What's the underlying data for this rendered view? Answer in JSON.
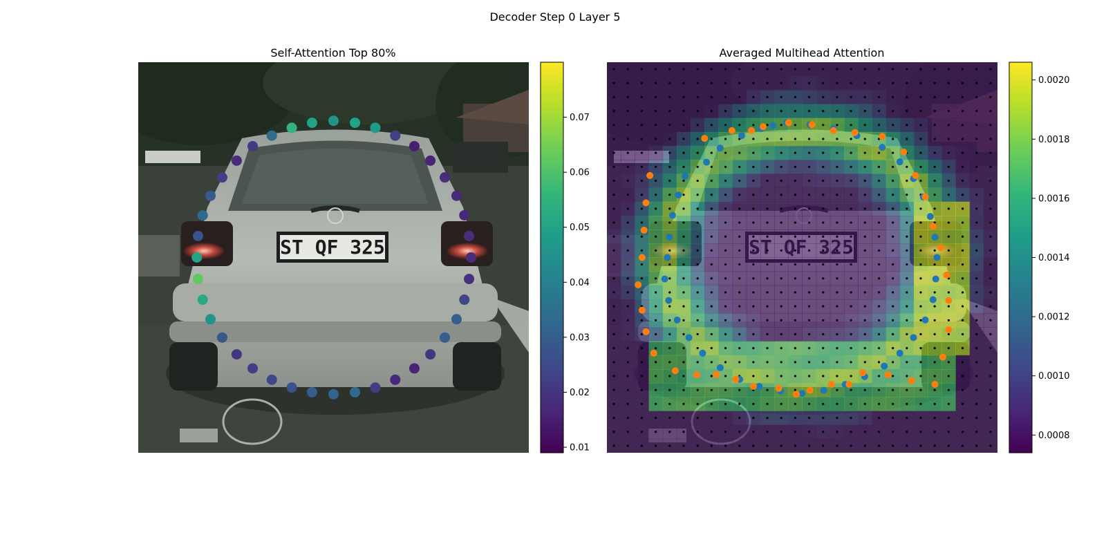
{
  "figure_title": "Decoder Step 0 Layer 5",
  "colormap": [
    "#440154",
    "#482878",
    "#3e4a89",
    "#31688e",
    "#26828e",
    "#1f9e89",
    "#35b779",
    "#6ece58",
    "#b5de2b",
    "#fde725"
  ],
  "chart_data": [
    {
      "type": "scatter",
      "title": "Self-Attention Top 80%",
      "background": "photo of rear of silver hatchback car with license plate",
      "plate_text": "ST QF 325",
      "colorbar": {
        "min": 0.009,
        "max": 0.08,
        "ticks": [
          0.01,
          0.02,
          0.03,
          0.04,
          0.05,
          0.06,
          0.07
        ]
      },
      "highlight_line": {
        "from_index": 40,
        "to_index": 34,
        "color": "#fde725"
      },
      "points": [
        {
          "x": 0.5,
          "y": 0.15,
          "v": 0.045
        },
        {
          "x": 0.555,
          "y": 0.155,
          "v": 0.05
        },
        {
          "x": 0.607,
          "y": 0.168,
          "v": 0.048
        },
        {
          "x": 0.658,
          "y": 0.188,
          "v": 0.023
        },
        {
          "x": 0.707,
          "y": 0.215,
          "v": 0.015
        },
        {
          "x": 0.748,
          "y": 0.252,
          "v": 0.016
        },
        {
          "x": 0.785,
          "y": 0.295,
          "v": 0.018
        },
        {
          "x": 0.815,
          "y": 0.342,
          "v": 0.017
        },
        {
          "x": 0.835,
          "y": 0.392,
          "v": 0.017
        },
        {
          "x": 0.847,
          "y": 0.445,
          "v": 0.018
        },
        {
          "x": 0.852,
          "y": 0.5,
          "v": 0.018
        },
        {
          "x": 0.847,
          "y": 0.555,
          "v": 0.019
        },
        {
          "x": 0.835,
          "y": 0.608,
          "v": 0.024
        },
        {
          "x": 0.815,
          "y": 0.658,
          "v": 0.03
        },
        {
          "x": 0.785,
          "y": 0.705,
          "v": 0.03
        },
        {
          "x": 0.748,
          "y": 0.748,
          "v": 0.02
        },
        {
          "x": 0.707,
          "y": 0.784,
          "v": 0.016
        },
        {
          "x": 0.658,
          "y": 0.813,
          "v": 0.017
        },
        {
          "x": 0.607,
          "y": 0.833,
          "v": 0.022
        },
        {
          "x": 0.555,
          "y": 0.845,
          "v": 0.033
        },
        {
          "x": 0.5,
          "y": 0.85,
          "v": 0.032
        },
        {
          "x": 0.445,
          "y": 0.845,
          "v": 0.03
        },
        {
          "x": 0.393,
          "y": 0.833,
          "v": 0.027
        },
        {
          "x": 0.342,
          "y": 0.813,
          "v": 0.024
        },
        {
          "x": 0.293,
          "y": 0.784,
          "v": 0.022
        },
        {
          "x": 0.252,
          "y": 0.748,
          "v": 0.02
        },
        {
          "x": 0.215,
          "y": 0.705,
          "v": 0.028
        },
        {
          "x": 0.185,
          "y": 0.658,
          "v": 0.045
        },
        {
          "x": 0.165,
          "y": 0.608,
          "v": 0.052
        },
        {
          "x": 0.153,
          "y": 0.555,
          "v": 0.062
        },
        {
          "x": 0.15,
          "y": 0.5,
          "v": 0.05
        },
        {
          "x": 0.153,
          "y": 0.445,
          "v": 0.027
        },
        {
          "x": 0.165,
          "y": 0.392,
          "v": 0.033
        },
        {
          "x": 0.185,
          "y": 0.342,
          "v": 0.029
        },
        {
          "x": 0.215,
          "y": 0.295,
          "v": 0.022
        },
        {
          "x": 0.252,
          "y": 0.252,
          "v": 0.018
        },
        {
          "x": 0.293,
          "y": 0.215,
          "v": 0.021
        },
        {
          "x": 0.342,
          "y": 0.188,
          "v": 0.034
        },
        {
          "x": 0.393,
          "y": 0.168,
          "v": 0.055
        },
        {
          "x": 0.445,
          "y": 0.155,
          "v": 0.05
        }
      ]
    },
    {
      "type": "heatmap",
      "title": "Averaged Multihead Attention",
      "background": "same car photo overlaid with attention heatmap and black sampling dot grid",
      "colorbar": {
        "min": 0.00074,
        "max": 0.00206,
        "ticks": [
          0.0008,
          0.001,
          0.0012,
          0.0014,
          0.0016,
          0.0018,
          0.002
        ]
      },
      "grid_n": 28,
      "series": [
        {
          "name": "",
          "color": "#1f77b4",
          "points": [
            {
              "x": 0.46,
              "y": 0.155
            },
            {
              "x": 0.52,
              "y": 0.16
            },
            {
              "x": 0.58,
              "y": 0.17
            },
            {
              "x": 0.64,
              "y": 0.188
            },
            {
              "x": 0.705,
              "y": 0.218
            },
            {
              "x": 0.75,
              "y": 0.255
            },
            {
              "x": 0.785,
              "y": 0.298
            },
            {
              "x": 0.81,
              "y": 0.345
            },
            {
              "x": 0.828,
              "y": 0.395
            },
            {
              "x": 0.84,
              "y": 0.448
            },
            {
              "x": 0.845,
              "y": 0.5
            },
            {
              "x": 0.842,
              "y": 0.555
            },
            {
              "x": 0.835,
              "y": 0.608
            },
            {
              "x": 0.815,
              "y": 0.66
            },
            {
              "x": 0.785,
              "y": 0.705
            },
            {
              "x": 0.75,
              "y": 0.745
            },
            {
              "x": 0.71,
              "y": 0.778
            },
            {
              "x": 0.66,
              "y": 0.805
            },
            {
              "x": 0.61,
              "y": 0.825
            },
            {
              "x": 0.555,
              "y": 0.84
            },
            {
              "x": 0.5,
              "y": 0.848
            },
            {
              "x": 0.445,
              "y": 0.842
            },
            {
              "x": 0.39,
              "y": 0.83
            },
            {
              "x": 0.34,
              "y": 0.812
            },
            {
              "x": 0.29,
              "y": 0.782
            },
            {
              "x": 0.245,
              "y": 0.745
            },
            {
              "x": 0.21,
              "y": 0.705
            },
            {
              "x": 0.18,
              "y": 0.66
            },
            {
              "x": 0.158,
              "y": 0.61
            },
            {
              "x": 0.148,
              "y": 0.555
            },
            {
              "x": 0.155,
              "y": 0.5
            },
            {
              "x": 0.16,
              "y": 0.448
            },
            {
              "x": 0.168,
              "y": 0.392
            },
            {
              "x": 0.183,
              "y": 0.34
            },
            {
              "x": 0.2,
              "y": 0.292
            },
            {
              "x": 0.255,
              "y": 0.256
            },
            {
              "x": 0.29,
              "y": 0.22
            },
            {
              "x": 0.345,
              "y": 0.188
            },
            {
              "x": 0.395,
              "y": 0.17
            },
            {
              "x": 0.425,
              "y": 0.162
            }
          ]
        },
        {
          "name": "",
          "color": "#ff7f0e",
          "points": [
            {
              "x": 0.25,
              "y": 0.195
            },
            {
              "x": 0.32,
              "y": 0.175
            },
            {
              "x": 0.37,
              "y": 0.175
            },
            {
              "x": 0.4,
              "y": 0.165
            },
            {
              "x": 0.465,
              "y": 0.155
            },
            {
              "x": 0.525,
              "y": 0.16
            },
            {
              "x": 0.58,
              "y": 0.175
            },
            {
              "x": 0.635,
              "y": 0.18
            },
            {
              "x": 0.705,
              "y": 0.19
            },
            {
              "x": 0.76,
              "y": 0.23
            },
            {
              "x": 0.79,
              "y": 0.29
            },
            {
              "x": 0.815,
              "y": 0.345
            },
            {
              "x": 0.835,
              "y": 0.42
            },
            {
              "x": 0.855,
              "y": 0.475
            },
            {
              "x": 0.87,
              "y": 0.545
            },
            {
              "x": 0.875,
              "y": 0.61
            },
            {
              "x": 0.875,
              "y": 0.685
            },
            {
              "x": 0.86,
              "y": 0.755
            },
            {
              "x": 0.84,
              "y": 0.825
            },
            {
              "x": 0.78,
              "y": 0.815
            },
            {
              "x": 0.72,
              "y": 0.8
            },
            {
              "x": 0.655,
              "y": 0.795
            },
            {
              "x": 0.62,
              "y": 0.825
            },
            {
              "x": 0.575,
              "y": 0.825
            },
            {
              "x": 0.52,
              "y": 0.84
            },
            {
              "x": 0.485,
              "y": 0.85
            },
            {
              "x": 0.44,
              "y": 0.835
            },
            {
              "x": 0.375,
              "y": 0.83
            },
            {
              "x": 0.33,
              "y": 0.812
            },
            {
              "x": 0.28,
              "y": 0.8
            },
            {
              "x": 0.23,
              "y": 0.8
            },
            {
              "x": 0.175,
              "y": 0.79
            },
            {
              "x": 0.12,
              "y": 0.745
            },
            {
              "x": 0.1,
              "y": 0.69
            },
            {
              "x": 0.09,
              "y": 0.635
            },
            {
              "x": 0.08,
              "y": 0.57
            },
            {
              "x": 0.09,
              "y": 0.5
            },
            {
              "x": 0.095,
              "y": 0.43
            },
            {
              "x": 0.1,
              "y": 0.36
            },
            {
              "x": 0.11,
              "y": 0.29
            }
          ]
        }
      ]
    }
  ]
}
